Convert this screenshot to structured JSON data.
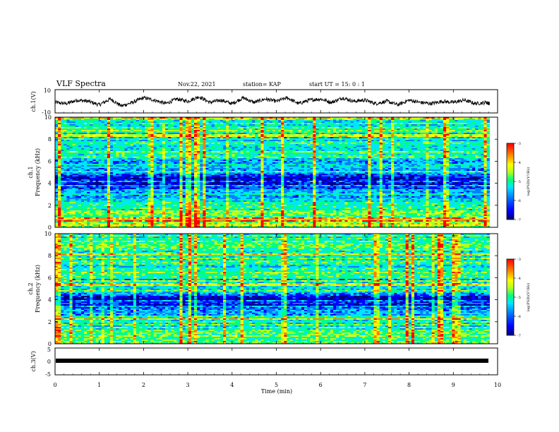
{
  "header": {
    "title": "VLF Spectra",
    "date": "Nov.22, 2021",
    "station": "station= KAP",
    "start_time": "start  UT  =   15: 0  : 1"
  },
  "colors": {
    "waveform": "#000000",
    "colormap": [
      "#00007f",
      "#0000ff",
      "#0080ff",
      "#00e5ff",
      "#00ff80",
      "#b0ff20",
      "#ffff00",
      "#ff8000",
      "#ff0000"
    ]
  },
  "chart_data": [
    {
      "type": "line",
      "name": "ch1-waveform",
      "ylabel": "ch.1(V)",
      "ylim": [
        -10,
        10
      ],
      "yticks": [
        "10",
        "-10"
      ],
      "xlim": [
        0,
        10
      ],
      "x": [
        0,
        0.25,
        0.5,
        0.75,
        1.0,
        1.25,
        1.5,
        1.75,
        2.0,
        2.25,
        2.5,
        2.75,
        3.0,
        3.25,
        3.5,
        3.75,
        4.0,
        4.25,
        4.5,
        4.75,
        5.0,
        5.25,
        5.5,
        5.75,
        6.0,
        6.25,
        6.5,
        6.75,
        7.0,
        7.25,
        7.5,
        7.75,
        8.0,
        8.25,
        8.5,
        8.75,
        9.0,
        9.25,
        9.5,
        9.75,
        9.82
      ],
      "y": [
        -1,
        -2,
        1,
        0,
        -3,
        2,
        -4,
        -1,
        3,
        1,
        -2,
        2,
        0,
        4,
        -1,
        1,
        -2,
        3,
        -1,
        2,
        0,
        3,
        -2,
        1,
        2,
        -1,
        3,
        0,
        1,
        -2,
        0,
        -3,
        1,
        -1,
        -2,
        0,
        -1,
        1,
        -2,
        -1,
        -2
      ]
    },
    {
      "type": "heatmap",
      "name": "ch1-spectrogram",
      "ylabel": "ch.1\nFrequency (kHz)",
      "ylim": [
        0,
        10
      ],
      "yticks": [
        "0",
        "2",
        "4",
        "6",
        "8",
        "10"
      ],
      "xlim": [
        0,
        10
      ],
      "freq_kHz": [
        0,
        0.5,
        1,
        1.5,
        2,
        2.5,
        3,
        3.5,
        4,
        4.5,
        5,
        5.5,
        6,
        6.5,
        7,
        7.5,
        8,
        8.5,
        9,
        9.5,
        10
      ],
      "log_psd": [
        -4.5,
        -4.6,
        -4.8,
        -4.9,
        -5.0,
        -5.2,
        -5.6,
        -5.9,
        -6.2,
        -6.3,
        -5.5,
        -5.3,
        -5.6,
        -5.0,
        -5.4,
        -5.1,
        -5.4,
        -5.2,
        -5.0,
        -5.2,
        -5.0
      ],
      "colorbar": {
        "label": "log(PSD)(V²/Hz)",
        "range": [
          -7,
          -3
        ],
        "ticks": [
          "-3",
          "-4",
          "-5",
          "-6",
          "-7"
        ]
      }
    },
    {
      "type": "heatmap",
      "name": "ch2-spectrogram",
      "ylabel": "ch.2\nFrequency (kHz)",
      "ylim": [
        0,
        10
      ],
      "yticks": [
        "0",
        "2",
        "4",
        "6",
        "8",
        "10"
      ],
      "xlim": [
        0,
        10
      ],
      "freq_kHz": [
        0,
        0.5,
        1,
        1.5,
        2,
        2.5,
        3,
        3.5,
        4,
        4.5,
        5,
        5.5,
        6,
        6.5,
        7,
        7.5,
        8,
        8.5,
        9,
        9.5,
        10
      ],
      "log_psd": [
        -4.6,
        -4.8,
        -5.0,
        -5.1,
        -5.2,
        -5.4,
        -5.8,
        -6.1,
        -6.3,
        -6.0,
        -5.4,
        -5.2,
        -5.5,
        -5.0,
        -5.3,
        -5.0,
        -5.2,
        -5.0,
        -4.8,
        -5.0,
        -5.1
      ],
      "colorbar": {
        "label": "log(PSD)(V²/Hz)",
        "range": [
          -7,
          -3
        ],
        "ticks": [
          "-3",
          "-4",
          "-5",
          "-6",
          "-7"
        ]
      }
    },
    {
      "type": "line",
      "name": "ch3-waveform",
      "ylabel": "ch.3(V)",
      "ylim": [
        -5,
        5
      ],
      "yticks": [
        "5",
        "0",
        "-5"
      ],
      "xlim": [
        0,
        10
      ],
      "x": [
        0,
        9.82
      ],
      "y": [
        0,
        0
      ]
    }
  ],
  "xaxis": {
    "label": "Time (min)",
    "ticks": [
      "0",
      "1",
      "2",
      "3",
      "4",
      "5",
      "6",
      "7",
      "8",
      "9",
      "10"
    ]
  }
}
